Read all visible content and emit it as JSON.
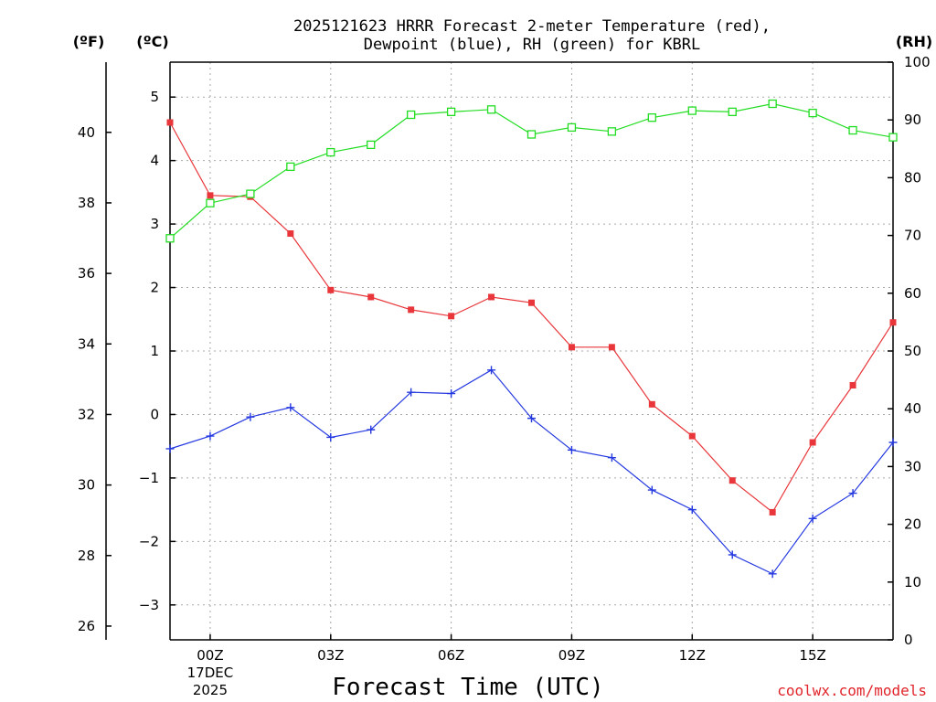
{
  "chart_data": {
    "type": "line",
    "title_lines": [
      "2025121623 HRRR Forecast 2-meter Temperature (red),",
      "Dewpoint (blue), RH (green) for KBRL"
    ],
    "unit_labels": {
      "fahrenheit": "(ºF)",
      "celsius": "(ºC)",
      "rh": "(RH)"
    },
    "xlabel": "Forecast Time (UTC)",
    "credit": "coolwx.com/models",
    "x_hours": [
      -1,
      0,
      1,
      2,
      3,
      4,
      5,
      6,
      7,
      8,
      9,
      10,
      11,
      12,
      13,
      14,
      15,
      16,
      17
    ],
    "xlim": [
      -1,
      17
    ],
    "x_ticks": [
      {
        "hour": 0,
        "lines": [
          "00Z",
          "17DEC",
          "2025"
        ]
      },
      {
        "hour": 3,
        "lines": [
          "03Z"
        ]
      },
      {
        "hour": 6,
        "lines": [
          "06Z"
        ]
      },
      {
        "hour": 9,
        "lines": [
          "09Z"
        ]
      },
      {
        "hour": 12,
        "lines": [
          "12Z"
        ]
      },
      {
        "hour": 15,
        "lines": [
          "15Z"
        ]
      }
    ],
    "celsius_axis": {
      "range": [
        -3.55,
        5.55
      ],
      "ticks": [
        {
          "v": 5,
          "label": "5"
        },
        {
          "v": 4,
          "label": "4"
        },
        {
          "v": 3,
          "label": "3"
        },
        {
          "v": 2,
          "label": "2"
        },
        {
          "v": 1,
          "label": "1"
        },
        {
          "v": 0,
          "label": "0"
        },
        {
          "v": -1,
          "label": "−1"
        },
        {
          "v": -2,
          "label": "−2"
        },
        {
          "v": -3,
          "label": "−3"
        }
      ]
    },
    "fahrenheit_axis": {
      "ticks": [
        {
          "v": 40,
          "label": "40"
        },
        {
          "v": 38,
          "label": "38"
        },
        {
          "v": 36,
          "label": "36"
        },
        {
          "v": 34,
          "label": "34"
        },
        {
          "v": 32,
          "label": "32"
        },
        {
          "v": 30,
          "label": "30"
        },
        {
          "v": 28,
          "label": "28"
        },
        {
          "v": 26,
          "label": "26"
        }
      ]
    },
    "rh_axis": {
      "range": [
        0,
        100
      ],
      "ticks": [
        {
          "v": 100,
          "label": "100"
        },
        {
          "v": 90,
          "label": "90"
        },
        {
          "v": 80,
          "label": "80"
        },
        {
          "v": 70,
          "label": "70"
        },
        {
          "v": 60,
          "label": "60"
        },
        {
          "v": 50,
          "label": "50"
        },
        {
          "v": 40,
          "label": "40"
        },
        {
          "v": 30,
          "label": "30"
        },
        {
          "v": 20,
          "label": "20"
        },
        {
          "v": 10,
          "label": "10"
        },
        {
          "v": 0,
          "label": "0"
        }
      ]
    },
    "series": [
      {
        "name": "Temperature",
        "color": "#e8363a",
        "marker": "filled-square",
        "axis": "celsius",
        "values": [
          4.6,
          3.45,
          3.43,
          2.85,
          1.96,
          1.85,
          1.65,
          1.55,
          1.85,
          1.76,
          1.06,
          1.06,
          0.16,
          -0.34,
          -1.04,
          -1.54,
          -0.44,
          0.46,
          1.45
        ]
      },
      {
        "name": "Dewpoint",
        "color": "#2438e0",
        "marker": "plus",
        "axis": "celsius",
        "values": [
          -0.54,
          -0.34,
          -0.04,
          0.11,
          -0.36,
          -0.24,
          0.35,
          0.33,
          0.7,
          -0.06,
          -0.56,
          -0.68,
          -1.19,
          -1.5,
          -2.21,
          -2.51,
          -1.64,
          -1.24,
          -0.44
        ]
      },
      {
        "name": "RH",
        "color": "#22dd22",
        "marker": "open-square",
        "axis": "rh",
        "values": [
          69.5,
          75.6,
          77.2,
          81.9,
          84.4,
          85.7,
          90.9,
          91.4,
          91.8,
          87.5,
          88.7,
          88.0,
          90.4,
          91.6,
          91.4,
          92.8,
          91.2,
          88.2,
          87.0
        ]
      }
    ]
  }
}
